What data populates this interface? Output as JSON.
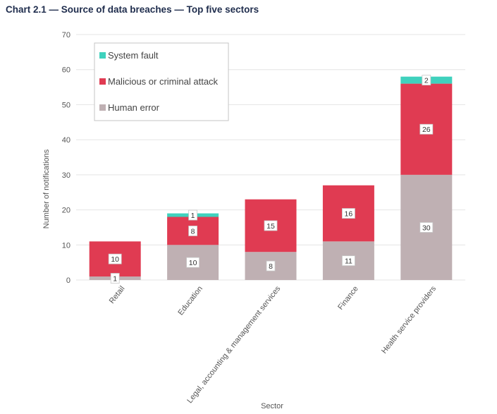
{
  "chart_data": {
    "type": "bar",
    "stacked": true,
    "title": "Chart 2.1 — Source of data breaches — Top five sectors",
    "xlabel": "Sector",
    "ylabel": "Number of notifications",
    "ylim": [
      0,
      70
    ],
    "yticks": [
      0,
      10,
      20,
      30,
      40,
      50,
      60,
      70
    ],
    "grid": true,
    "legend_position": "top-left",
    "categories": [
      "Retail",
      "Education",
      "Legal, accounting & management services",
      "Finance",
      "Health service providers"
    ],
    "series": [
      {
        "name": "Human error",
        "color": "#bfb0b3",
        "values": [
          1,
          10,
          8,
          11,
          30
        ]
      },
      {
        "name": "Malicious or criminal attack",
        "color": "#e03b52",
        "values": [
          10,
          8,
          15,
          16,
          26
        ]
      },
      {
        "name": "System fault",
        "color": "#3fd1bd",
        "values": [
          0,
          1,
          0,
          0,
          2
        ]
      }
    ],
    "legend_order": [
      "System fault",
      "Malicious or criminal attack",
      "Human error"
    ]
  }
}
